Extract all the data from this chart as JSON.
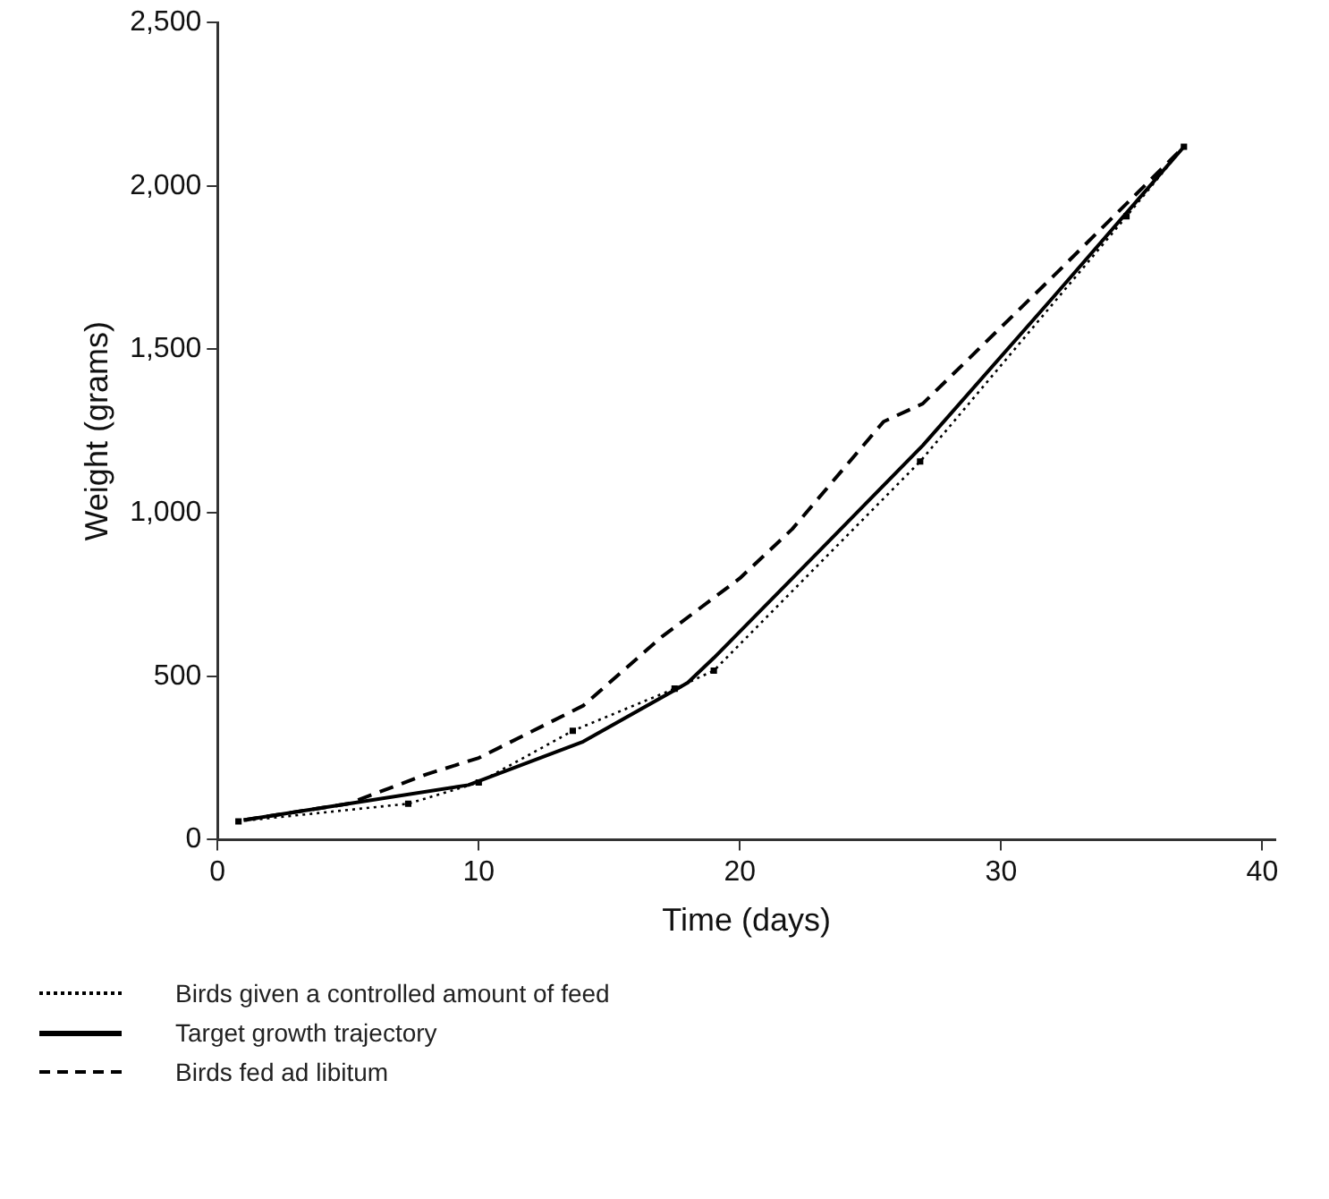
{
  "chart_data": {
    "type": "line",
    "xlabel": "Time (days)",
    "ylabel": "Weight (grams)",
    "xlim": [
      0,
      40.5
    ],
    "xticks": [
      0,
      10,
      20,
      30,
      40
    ],
    "ylim": [
      0,
      2500
    ],
    "yticks": [
      0,
      {
        "value": 500,
        "label": "500"
      },
      {
        "value": 1000,
        "label": "1,000"
      },
      {
        "value": 1500,
        "label": "1,500"
      },
      {
        "value": 2000,
        "label": "2,000"
      },
      {
        "value": 2500,
        "label": "2,500"
      }
    ],
    "grid": false,
    "legend": "bottom left",
    "series": [
      {
        "name": "Birds given a controlled amount of feed",
        "color": "#000000",
        "line_style": "dotted",
        "marker": "square",
        "x": [
          0.8,
          7.3,
          10,
          13.6,
          17.5,
          19,
          26.9,
          34.8,
          37
        ],
        "values": [
          56,
          110,
          175,
          333,
          462,
          517,
          1157,
          1907,
          2120
        ]
      },
      {
        "name": "Target growth trajectory",
        "color": "#000000",
        "line_style": "solid",
        "marker": "none",
        "x": [
          1,
          5,
          9.6,
          14,
          18,
          19,
          23,
          27,
          32,
          37
        ],
        "values": [
          60,
          110,
          167,
          300,
          480,
          556,
          880,
          1206,
          1660,
          2120
        ]
      },
      {
        "name": "Birds fed ad libitum",
        "color": "#000000",
        "line_style": "dashed",
        "marker": "none",
        "x": [
          1,
          5,
          8,
          10,
          14,
          17,
          20,
          22,
          25.5,
          27,
          32,
          37
        ],
        "values": [
          60,
          110,
          200,
          250,
          410,
          620,
          800,
          950,
          1279,
          1334,
          1724,
          2120
        ]
      }
    ]
  }
}
